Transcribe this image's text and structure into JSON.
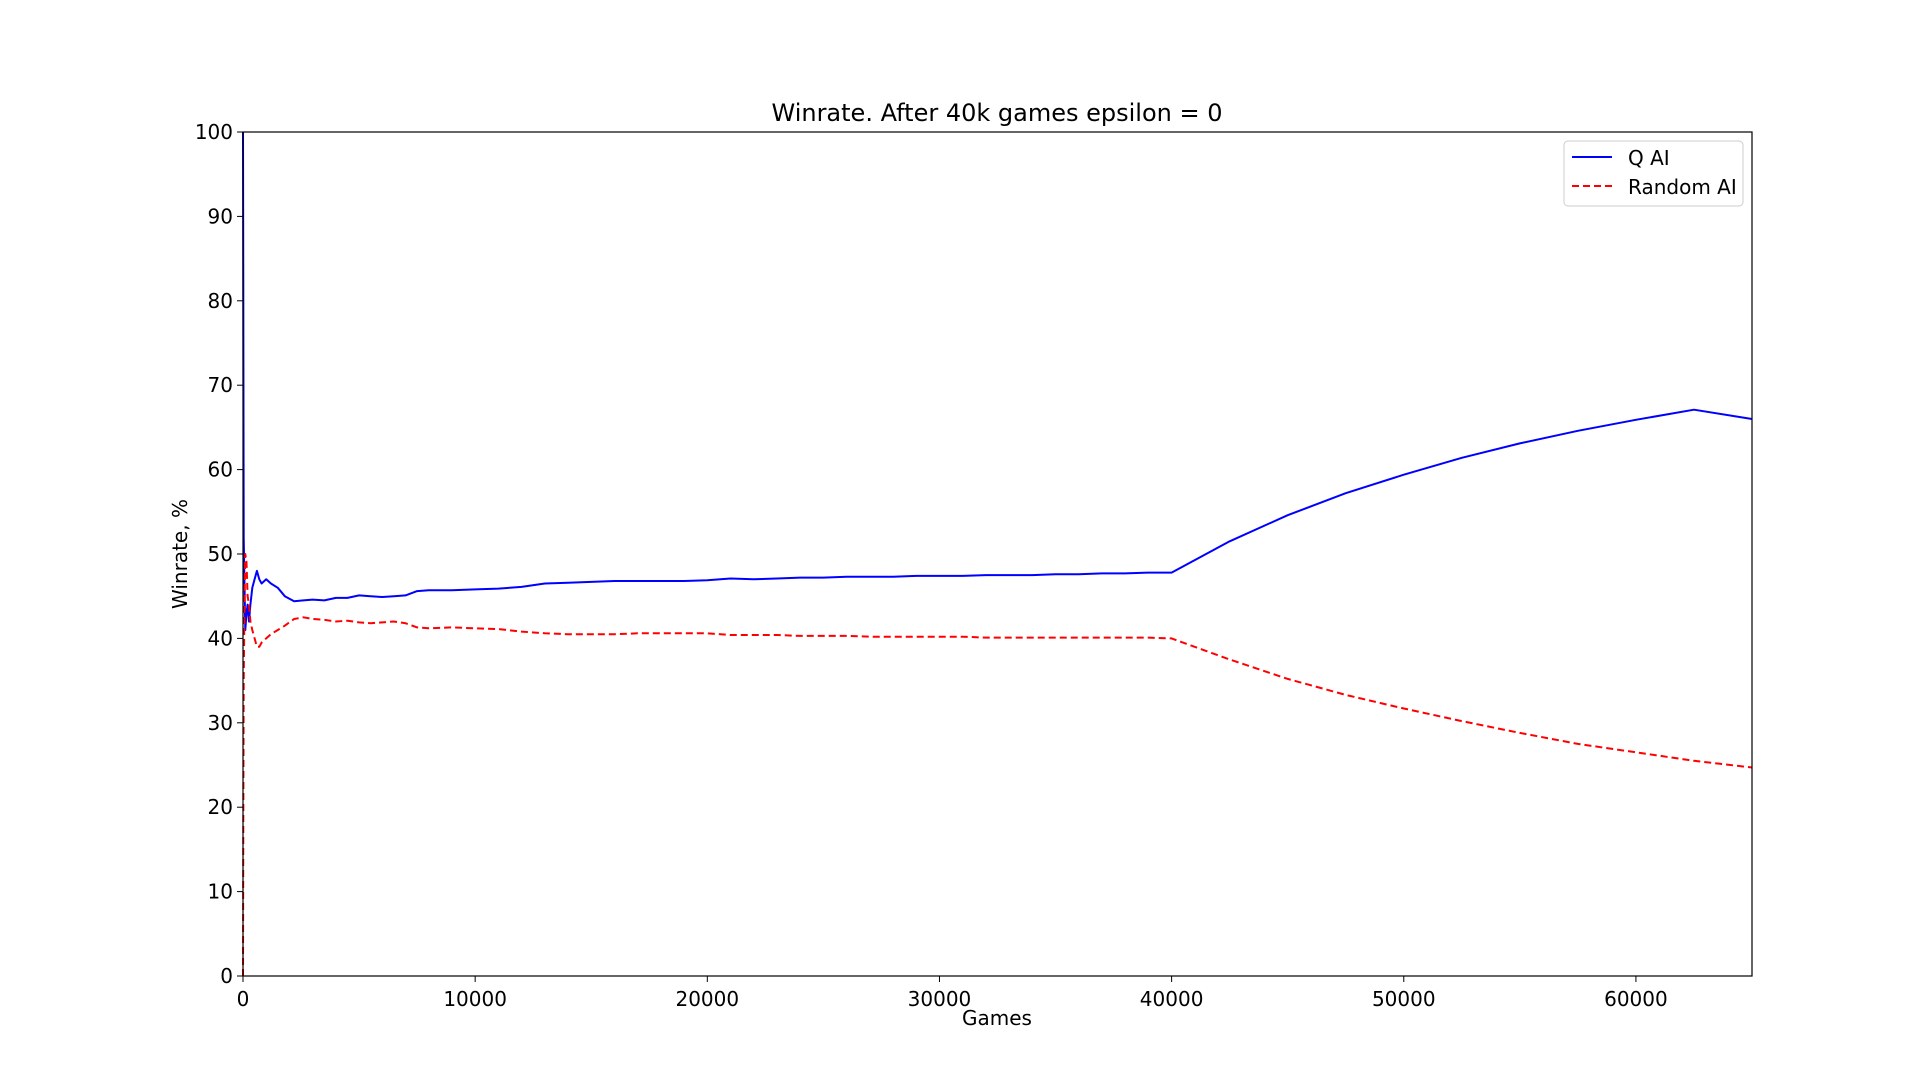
{
  "chart_data": {
    "type": "line",
    "title": "Winrate. After 40k games epsilon = 0",
    "xlabel": "Games",
    "ylabel": "Winrate, %",
    "xlim": [
      0,
      65000
    ],
    "ylim": [
      0,
      100
    ],
    "xticks": [
      0,
      10000,
      20000,
      30000,
      40000,
      50000,
      60000
    ],
    "xtick_labels": [
      "0",
      "10000",
      "20000",
      "30000",
      "40000",
      "50000",
      "60000"
    ],
    "yticks": [
      0,
      10,
      20,
      30,
      40,
      50,
      60,
      70,
      80,
      90,
      100
    ],
    "ytick_labels": [
      "0",
      "10",
      "20",
      "30",
      "40",
      "50",
      "60",
      "70",
      "80",
      "90",
      "100"
    ],
    "grid": false,
    "legend_position": "top-right",
    "series": [
      {
        "name": "Q AI",
        "color": "#0000ff",
        "dash": "solid",
        "x": [
          0,
          15,
          30,
          60,
          100,
          150,
          200,
          260,
          320,
          400,
          500,
          600,
          700,
          800,
          1000,
          1200,
          1500,
          1800,
          2200,
          2600,
          3000,
          3500,
          4000,
          4500,
          5000,
          5500,
          6000,
          6500,
          7000,
          7500,
          8000,
          9000,
          10000,
          11000,
          12000,
          13000,
          14000,
          15000,
          16000,
          17000,
          18000,
          19000,
          20000,
          21000,
          22000,
          23000,
          24000,
          25000,
          26000,
          27000,
          28000,
          29000,
          30000,
          31000,
          32000,
          33000,
          34000,
          35000,
          36000,
          37000,
          38000,
          39000,
          40000,
          42500,
          45000,
          47500,
          50000,
          52500,
          55000,
          57500,
          60000,
          62500,
          65000
        ],
        "y": [
          100,
          81,
          52,
          47,
          41,
          43,
          44,
          42,
          44,
          46,
          47,
          48,
          47,
          46.5,
          47,
          46.5,
          46,
          45,
          44.4,
          44.5,
          44.6,
          44.5,
          44.8,
          44.8,
          45.1,
          45,
          44.9,
          45,
          45.1,
          45.6,
          45.7,
          45.7,
          45.8,
          45.9,
          46.1,
          46.5,
          46.6,
          46.7,
          46.8,
          46.8,
          46.8,
          46.8,
          46.9,
          47.1,
          47,
          47.1,
          47.2,
          47.2,
          47.3,
          47.3,
          47.3,
          47.4,
          47.4,
          47.4,
          47.5,
          47.5,
          47.5,
          47.6,
          47.6,
          47.7,
          47.7,
          47.8,
          47.8,
          51.5,
          54.6,
          57.2,
          59.4,
          61.4,
          63.1,
          64.6,
          65.9,
          67.1,
          66.0
        ]
      },
      {
        "name": "Random AI",
        "color": "#ff0000",
        "dash": "dashed",
        "x": [
          0,
          15,
          30,
          60,
          100,
          150,
          200,
          260,
          320,
          400,
          500,
          600,
          700,
          800,
          1000,
          1200,
          1500,
          1800,
          2200,
          2600,
          3000,
          3500,
          4000,
          4500,
          5000,
          5500,
          6000,
          6500,
          7000,
          7500,
          8000,
          9000,
          10000,
          11000,
          12000,
          13000,
          14000,
          15000,
          16000,
          17000,
          18000,
          19000,
          20000,
          21000,
          22000,
          23000,
          24000,
          25000,
          26000,
          27000,
          28000,
          29000,
          30000,
          31000,
          32000,
          33000,
          34000,
          35000,
          36000,
          37000,
          38000,
          39000,
          40000,
          42500,
          45000,
          47500,
          50000,
          52500,
          55000,
          57500,
          60000,
          62500,
          65000
        ],
        "y": [
          0,
          18,
          35,
          43,
          50,
          49,
          45,
          44,
          42,
          41,
          40,
          39,
          39,
          39.5,
          40,
          40.5,
          41,
          41.5,
          42.3,
          42.5,
          42.3,
          42.2,
          42,
          42.1,
          41.9,
          41.8,
          41.9,
          42,
          41.8,
          41.3,
          41.2,
          41.3,
          41.2,
          41.1,
          40.8,
          40.6,
          40.5,
          40.5,
          40.5,
          40.6,
          40.6,
          40.6,
          40.6,
          40.4,
          40.4,
          40.4,
          40.3,
          40.3,
          40.3,
          40.2,
          40.2,
          40.2,
          40.2,
          40.2,
          40.1,
          40.1,
          40.1,
          40.1,
          40.1,
          40.1,
          40.1,
          40.1,
          40.0,
          37.5,
          35.2,
          33.3,
          31.7,
          30.2,
          28.8,
          27.5,
          26.5,
          25.5,
          24.7
        ]
      }
    ]
  }
}
